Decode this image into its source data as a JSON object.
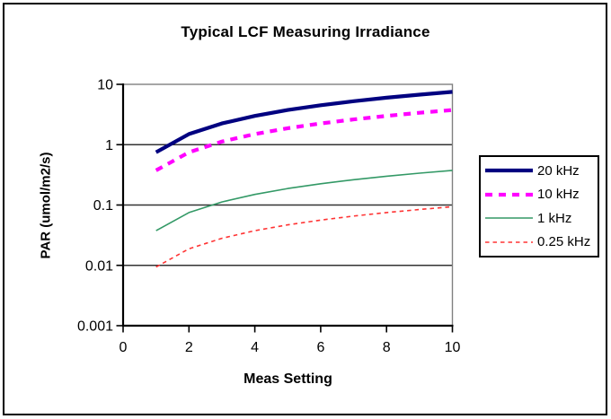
{
  "chart_data": {
    "type": "line",
    "title": "Typical LCF Measuring Irradiance",
    "xlabel": "Meas Setting",
    "ylabel": "PAR (umol/m2/s)",
    "x": [
      1,
      2,
      3,
      4,
      5,
      6,
      7,
      8,
      9,
      10
    ],
    "xlim": [
      0,
      10
    ],
    "x_tick_values": [
      0,
      2,
      4,
      6,
      8,
      10
    ],
    "x_tick_labels": [
      "0",
      "2",
      "4",
      "6",
      "8",
      "10"
    ],
    "y_scale": "log",
    "ylim": [
      0.001,
      10
    ],
    "y_tick_values": [
      10,
      1,
      0.1,
      0.01,
      0.001
    ],
    "y_tick_labels": [
      "10",
      "1",
      "0.1",
      "0.01",
      "0.001"
    ],
    "grid": "horizontal-major",
    "legend_position": "right",
    "series": [
      {
        "name": "20 kHz",
        "color": "#000080",
        "style": "solid",
        "width": 4.2,
        "values": [
          0.75,
          1.5,
          2.25,
          3.0,
          3.75,
          4.5,
          5.25,
          6.0,
          6.75,
          7.5
        ]
      },
      {
        "name": "10 kHz",
        "color": "#FF00FF",
        "style": "dashed",
        "width": 4.2,
        "values": [
          0.375,
          0.75,
          1.125,
          1.5,
          1.875,
          2.25,
          2.625,
          3.0,
          3.375,
          3.75
        ]
      },
      {
        "name": "1 kHz",
        "color": "#339966",
        "style": "solid",
        "width": 1.6,
        "values": [
          0.0375,
          0.075,
          0.1125,
          0.15,
          0.1875,
          0.225,
          0.2625,
          0.3,
          0.3375,
          0.375
        ]
      },
      {
        "name": "0.25 kHz",
        "color": "#FF3333",
        "style": "dashed",
        "width": 1.6,
        "values": [
          0.0094,
          0.0188,
          0.0281,
          0.0375,
          0.0469,
          0.0563,
          0.0656,
          0.075,
          0.0844,
          0.0938
        ]
      }
    ],
    "colors": {
      "axis": "#000000",
      "gridline": "#333333",
      "plot_border": "#808080",
      "background": "#ffffff"
    }
  }
}
